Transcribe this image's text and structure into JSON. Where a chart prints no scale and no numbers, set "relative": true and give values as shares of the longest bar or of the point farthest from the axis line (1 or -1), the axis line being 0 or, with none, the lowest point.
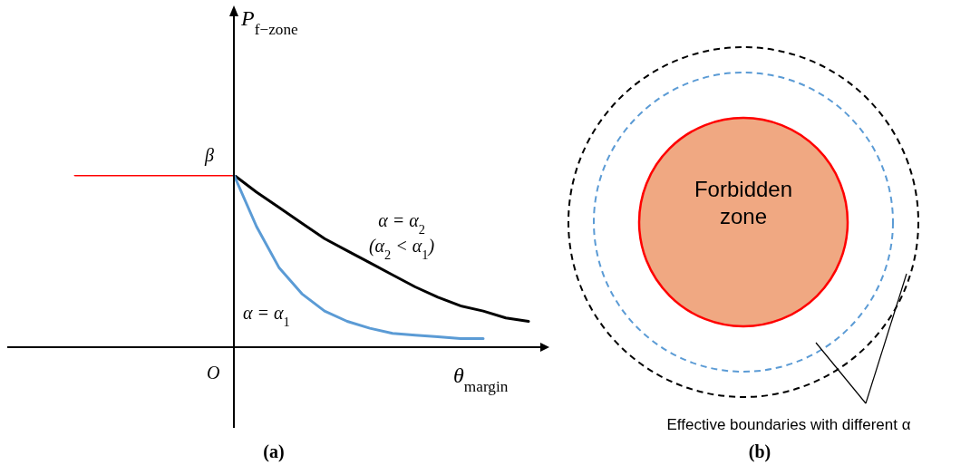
{
  "chart_data": [
    {
      "type": "line",
      "relative": true,
      "marker": "none",
      "ylabel": "P$_{f−zone}$",
      "xlabel": "θ$_{margin}$",
      "categories": [
        null,
        null,
        null,
        null,
        null,
        null,
        null,
        null,
        null,
        null,
        null,
        null,
        null,
        null,
        null,
        null,
        null,
        null,
        null,
        null,
        null,
        null,
        null,
        null
      ],
      "series": [
        {
          "color": "#ff0000",
          "values": [
            null,
            null,
            null,
            1,
            1,
            1,
            1,
            1,
            1,
            1,
            1,
            null,
            null,
            null,
            null,
            null,
            null,
            null,
            null,
            null,
            null,
            null,
            null,
            null
          ]
        },
        {
          "color": "#000000",
          "values": [
            null,
            null,
            null,
            null,
            null,
            null,
            null,
            null,
            null,
            null,
            1,
            0.9,
            0.81,
            0.72,
            0.63,
            0.56,
            0.49,
            0.42,
            0.35,
            0.29,
            0.24,
            0.21,
            0.17,
            0.15
          ]
        },
        {
          "color": "#5b9bd5",
          "values": [
            null,
            null,
            null,
            null,
            null,
            null,
            null,
            null,
            null,
            null,
            1,
            0.7,
            0.46,
            0.31,
            0.21,
            0.15,
            0.11,
            0.08,
            0.07,
            0.06,
            0.05,
            0.05,
            null,
            null
          ]
        }
      ],
      "annotations": [
        "β",
        "O",
        "α = α$_{2}$",
        "(α$_{2}$ < α$_{1}$)",
        "α = α$_{1}$",
        "(a)"
      ]
    },
    {
      "type": "other",
      "annotations": [
        "Forbidden zone",
        "Effective boundaries with different α",
        "(b)"
      ]
    }
  ]
}
